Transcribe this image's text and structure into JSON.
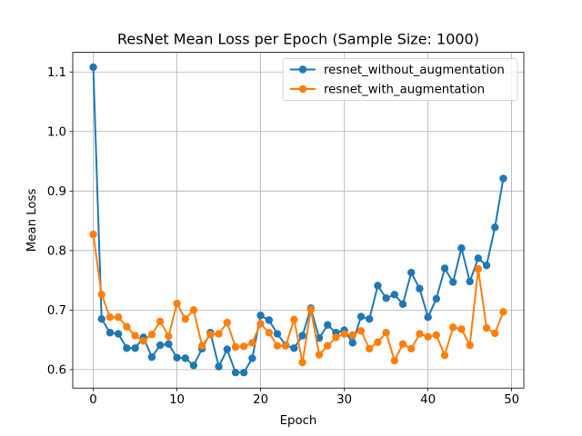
{
  "chart_data": {
    "type": "line",
    "title": "ResNet Mean Loss per Epoch (Sample Size: 1000)",
    "xlabel": "Epoch",
    "ylabel": "Mean Loss",
    "xlim": [
      -2.45,
      51.45
    ],
    "ylim": [
      0.569,
      1.133
    ],
    "xticks": [
      0,
      10,
      20,
      30,
      40,
      50
    ],
    "xtick_labels": [
      "0",
      "10",
      "20",
      "30",
      "40",
      "50"
    ],
    "yticks": [
      0.6,
      0.7,
      0.8,
      0.9,
      1.0,
      1.1
    ],
    "ytick_labels": [
      "0.6",
      "0.7",
      "0.8",
      "0.9",
      "1.0",
      "1.1"
    ],
    "grid": true,
    "legend_position": "top-right",
    "x": [
      0,
      1,
      2,
      3,
      4,
      5,
      6,
      7,
      8,
      9,
      10,
      11,
      12,
      13,
      14,
      15,
      16,
      17,
      18,
      19,
      20,
      21,
      22,
      23,
      24,
      25,
      26,
      27,
      28,
      29,
      30,
      31,
      32,
      33,
      34,
      35,
      36,
      37,
      38,
      39,
      40,
      41,
      42,
      43,
      44,
      45,
      46,
      47,
      48,
      49
    ],
    "series": [
      {
        "name": "resnet_without_augmentation",
        "color": "#1f77b4",
        "values": [
          1.108,
          0.685,
          0.662,
          0.66,
          0.636,
          0.636,
          0.654,
          0.621,
          0.641,
          0.643,
          0.62,
          0.619,
          0.607,
          0.635,
          0.662,
          0.605,
          0.634,
          0.595,
          0.595,
          0.619,
          0.691,
          0.683,
          0.66,
          0.641,
          0.636,
          0.657,
          0.703,
          0.653,
          0.675,
          0.662,
          0.666,
          0.645,
          0.689,
          0.685,
          0.741,
          0.72,
          0.726,
          0.71,
          0.763,
          0.736,
          0.688,
          0.719,
          0.77,
          0.747,
          0.804,
          0.748,
          0.787,
          0.775,
          0.839,
          0.921
        ]
      },
      {
        "name": "resnet_with_augmentation",
        "color": "#ff7f0e",
        "values": [
          0.827,
          0.726,
          0.688,
          0.688,
          0.672,
          0.657,
          0.648,
          0.659,
          0.681,
          0.656,
          0.711,
          0.685,
          0.7,
          0.64,
          0.659,
          0.66,
          0.679,
          0.638,
          0.639,
          0.645,
          0.677,
          0.662,
          0.64,
          0.64,
          0.684,
          0.612,
          0.701,
          0.625,
          0.64,
          0.654,
          0.66,
          0.658,
          0.665,
          0.635,
          0.646,
          0.662,
          0.615,
          0.643,
          0.635,
          0.66,
          0.655,
          0.658,
          0.624,
          0.671,
          0.668,
          0.641,
          0.769,
          0.67,
          0.661,
          0.697
        ]
      }
    ]
  }
}
